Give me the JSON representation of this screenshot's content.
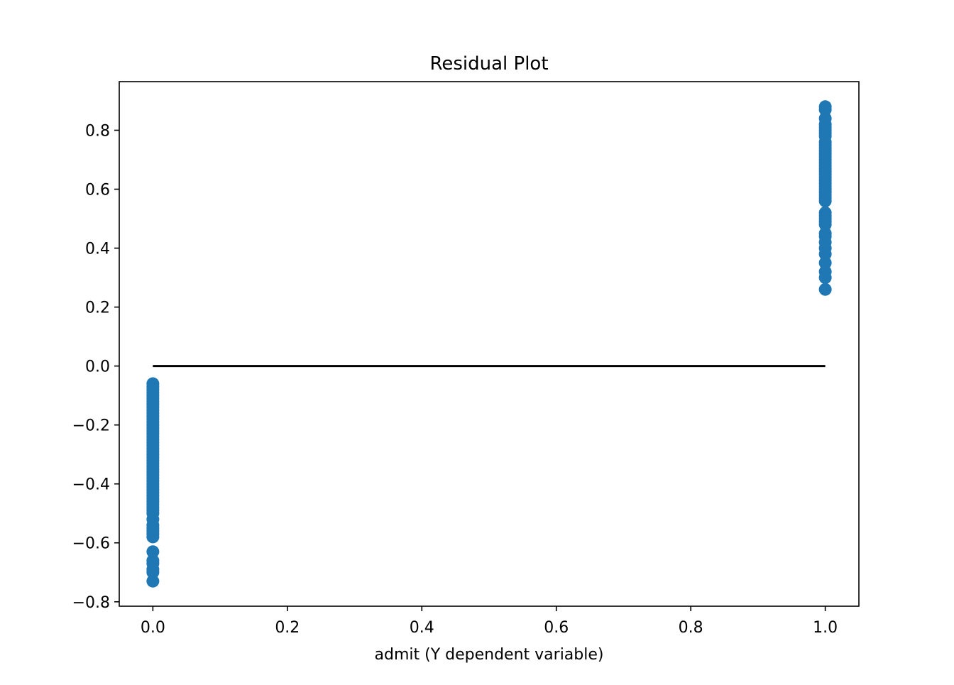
{
  "chart_data": {
    "type": "scatter",
    "title": "Residual Plot",
    "xlabel": "admit (Y dependent variable)",
    "ylabel": "",
    "xlim": [
      -0.05,
      1.05
    ],
    "ylim": [
      -0.815,
      0.965
    ],
    "xticks": [
      0.0,
      0.2,
      0.4,
      0.6,
      0.8,
      1.0
    ],
    "xtick_labels": [
      "0.0",
      "0.2",
      "0.4",
      "0.6",
      "0.8",
      "1.0"
    ],
    "yticks": [
      -0.8,
      -0.6,
      -0.4,
      -0.2,
      0.0,
      0.2,
      0.4,
      0.6,
      0.8
    ],
    "ytick_labels": [
      "−0.8",
      "−0.6",
      "−0.4",
      "−0.2",
      "0.0",
      "0.2",
      "0.4",
      "0.6",
      "0.8"
    ],
    "grid": false,
    "marker_color": "#1f77b4",
    "reference_line": {
      "x": [
        0.0,
        1.0
      ],
      "y": [
        0.0,
        0.0
      ],
      "color": "#000000"
    },
    "series": [
      {
        "x": [
          0,
          0,
          0,
          0,
          0,
          0,
          0,
          0,
          0,
          0,
          0,
          0,
          0,
          0,
          0,
          0,
          0,
          0,
          0,
          0,
          0,
          0,
          0,
          0,
          0,
          0,
          0,
          0,
          0,
          0,
          0,
          0,
          0,
          0,
          0,
          0,
          0,
          0,
          0,
          0,
          0,
          0,
          0,
          0,
          0,
          0,
          0,
          0,
          0,
          0,
          0,
          0,
          0,
          0,
          0,
          0,
          0
        ],
        "y": [
          -0.06,
          -0.07,
          -0.08,
          -0.09,
          -0.1,
          -0.11,
          -0.12,
          -0.13,
          -0.14,
          -0.15,
          -0.16,
          -0.17,
          -0.18,
          -0.19,
          -0.2,
          -0.21,
          -0.22,
          -0.23,
          -0.24,
          -0.25,
          -0.26,
          -0.27,
          -0.28,
          -0.29,
          -0.3,
          -0.31,
          -0.32,
          -0.33,
          -0.34,
          -0.35,
          -0.36,
          -0.37,
          -0.38,
          -0.39,
          -0.4,
          -0.41,
          -0.42,
          -0.43,
          -0.44,
          -0.45,
          -0.46,
          -0.47,
          -0.48,
          -0.49,
          -0.5,
          -0.52,
          -0.54,
          -0.55,
          -0.56,
          -0.57,
          -0.58,
          -0.63,
          -0.66,
          -0.67,
          -0.69,
          -0.7,
          -0.73
        ]
      },
      {
        "x": [
          1,
          1,
          1,
          1,
          1,
          1,
          1,
          1,
          1,
          1,
          1,
          1,
          1,
          1,
          1,
          1,
          1,
          1,
          1,
          1,
          1,
          1,
          1,
          1,
          1,
          1,
          1,
          1,
          1,
          1,
          1,
          1,
          1,
          1,
          1,
          1,
          1,
          1,
          1,
          1,
          1,
          1,
          1
        ],
        "y": [
          0.88,
          0.87,
          0.84,
          0.82,
          0.81,
          0.8,
          0.79,
          0.78,
          0.76,
          0.75,
          0.74,
          0.73,
          0.72,
          0.71,
          0.7,
          0.69,
          0.68,
          0.67,
          0.66,
          0.65,
          0.64,
          0.63,
          0.62,
          0.61,
          0.6,
          0.59,
          0.58,
          0.57,
          0.56,
          0.52,
          0.51,
          0.5,
          0.49,
          0.48,
          0.45,
          0.44,
          0.42,
          0.4,
          0.38,
          0.35,
          0.32,
          0.3,
          0.26
        ]
      }
    ]
  }
}
